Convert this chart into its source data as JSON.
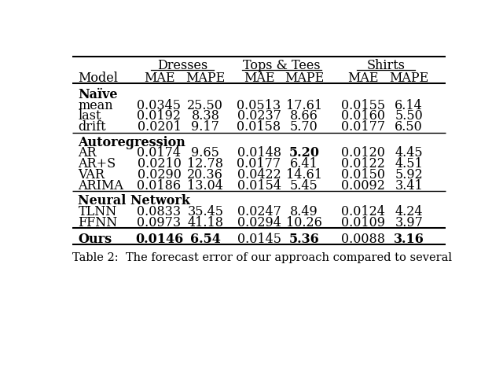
{
  "col_headers_top": [
    "Dresses",
    "Tops & Tees",
    "Shirts"
  ],
  "col_headers_sub": [
    "Model",
    "MAE",
    "MAPE",
    "MAE",
    "MAPE",
    "MAE",
    "MAPE"
  ],
  "sections": [
    {
      "section_label": "Naïve",
      "rows": [
        {
          "model": "mean",
          "vals": [
            "0.0345",
            "25.50",
            "0.0513",
            "17.61",
            "0.0155",
            "6.14"
          ],
          "bold": []
        },
        {
          "model": "last",
          "vals": [
            "0.0192",
            "8.38",
            "0.0237",
            "8.66",
            "0.0160",
            "5.50"
          ],
          "bold": []
        },
        {
          "model": "drift",
          "vals": [
            "0.0201",
            "9.17",
            "0.0158",
            "5.70",
            "0.0177",
            "6.50"
          ],
          "bold": []
        }
      ]
    },
    {
      "section_label": "Autoregression",
      "rows": [
        {
          "model": "AR",
          "vals": [
            "0.0174",
            "9.65",
            "0.0148",
            "5.20",
            "0.0120",
            "4.45"
          ],
          "bold": [
            3
          ]
        },
        {
          "model": "AR+S",
          "vals": [
            "0.0210",
            "12.78",
            "0.0177",
            "6.41",
            "0.0122",
            "4.51"
          ],
          "bold": []
        },
        {
          "model": "VAR",
          "vals": [
            "0.0290",
            "20.36",
            "0.0422",
            "14.61",
            "0.0150",
            "5.92"
          ],
          "bold": []
        },
        {
          "model": "ARIMA",
          "vals": [
            "0.0186",
            "13.04",
            "0.0154",
            "5.45",
            "0.0092",
            "3.41"
          ],
          "bold": []
        }
      ]
    },
    {
      "section_label": "Neural Network",
      "rows": [
        {
          "model": "TLNN",
          "vals": [
            "0.0833",
            "35.45",
            "0.0247",
            "8.49",
            "0.0124",
            "4.24"
          ],
          "bold": []
        },
        {
          "model": "FFNN",
          "vals": [
            "0.0973",
            "41.18",
            "0.0294",
            "10.26",
            "0.0109",
            "3.97"
          ],
          "bold": []
        }
      ]
    }
  ],
  "ours_row": {
    "model": "Ours",
    "vals": [
      "0.0146",
      "6.54",
      "0.0145",
      "5.36",
      "0.0088",
      "3.16"
    ],
    "bold": [
      0,
      1,
      2,
      4,
      6
    ]
  },
  "caption": "Table 2:  The forecast error of our approach compared to several",
  "bg_color": "#ffffff",
  "text_color": "#000000",
  "font_size": 11.5,
  "caption_font_size": 10.5
}
